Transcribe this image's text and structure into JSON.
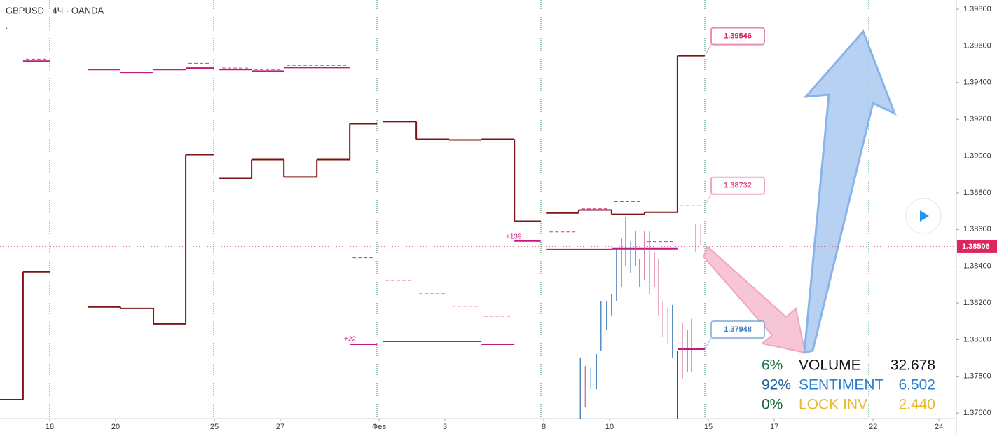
{
  "chart_data": {
    "type": "step",
    "title": "GBPUSD · 4Ч · OANDA",
    "xlim": [
      -1.51,
      27.53
    ],
    "xticks": [
      {
        "value": 0,
        "label": "18"
      },
      {
        "value": 2,
        "label": "20"
      },
      {
        "value": 5,
        "label": "25"
      },
      {
        "value": 7,
        "label": "27"
      },
      {
        "value": 10,
        "label": "Фев"
      },
      {
        "value": 12,
        "label": "3"
      },
      {
        "value": 15,
        "label": "8"
      },
      {
        "value": 17,
        "label": "10"
      },
      {
        "value": 20,
        "label": "15"
      },
      {
        "value": 22,
        "label": "17"
      },
      {
        "value": 25,
        "label": "22"
      },
      {
        "value": 27,
        "label": "24"
      }
    ],
    "ylim": [
      1.3757,
      1.3985
    ],
    "yticks": [
      {
        "value": 1.376,
        "label": "1.37600"
      },
      {
        "value": 1.378,
        "label": "1.37800"
      },
      {
        "value": 1.38,
        "label": "1.38000"
      },
      {
        "value": 1.382,
        "label": "1.38200"
      },
      {
        "value": 1.384,
        "label": "1.38400"
      },
      {
        "value": 1.386,
        "label": "1.38600"
      },
      {
        "value": 1.388,
        "label": "1.38800"
      },
      {
        "value": 1.39,
        "label": "1.39000"
      },
      {
        "value": 1.392,
        "label": "1.39200"
      },
      {
        "value": 1.394,
        "label": "1.39400"
      },
      {
        "value": 1.396,
        "label": "1.39600"
      },
      {
        "value": 1.398,
        "label": "1.39800"
      }
    ],
    "series": [
      {
        "color": "#7b1414",
        "style": "solid",
        "connect": true,
        "x0": [
          -1.51,
          -0.81,
          1.15,
          2.13,
          3.15,
          4.13,
          5.15,
          6.13,
          7.11,
          8.11,
          9.11,
          10.11,
          11.13,
          12.13,
          13.11,
          14.11,
          15.09,
          16.06,
          17.06,
          18.06,
          19.06
        ],
        "x1": [
          -0.81,
          0,
          2.13,
          3.15,
          4.13,
          4.98,
          6.13,
          7.11,
          8.11,
          9.11,
          9.94,
          11.13,
          12.13,
          13.11,
          14.11,
          14.91,
          16.06,
          17.06,
          18.06,
          19.06,
          19.89
        ],
        "values": [
          1.37673,
          1.38369,
          1.38178,
          1.3817,
          1.38086,
          1.39008,
          1.38878,
          1.38981,
          1.38886,
          1.38981,
          1.39176,
          1.39188,
          1.39092,
          1.39088,
          1.39092,
          1.38645,
          1.3869,
          1.38706,
          1.38683,
          1.38694,
          1.39546
        ]
      },
      {
        "color": "#c2187f",
        "style": "solid",
        "connect": false,
        "x0": [
          -0.81,
          1.15,
          2.13,
          3.15,
          4.13,
          5.15,
          6.13,
          7.11,
          9.11,
          10.11,
          13.11,
          14.11,
          15.09,
          17.06,
          19.06
        ],
        "x1": [
          0,
          2.13,
          3.15,
          4.13,
          4.98,
          6.13,
          7.11,
          9.11,
          9.94,
          13.11,
          14.11,
          14.91,
          17.06,
          19.06,
          19.89
        ],
        "values": [
          1.39517,
          1.39471,
          1.39456,
          1.39471,
          1.39479,
          1.39471,
          1.39463,
          1.39482,
          1.37975,
          1.3799,
          1.37975,
          1.38537,
          1.38491,
          1.38495,
          1.37948
        ]
      },
      {
        "color": "#d6368f",
        "style": "dashed",
        "connect": false,
        "x0": [
          -0.81,
          4.13,
          5.15,
          6.13,
          7.11,
          9.11,
          10.11,
          11.13,
          12.13,
          13.11,
          15.09,
          16.06,
          17.06,
          18.06,
          19.06
        ],
        "x1": [
          0,
          4.98,
          6.13,
          7.11,
          9.11,
          9.94,
          11.13,
          12.13,
          13.11,
          14.11,
          16.06,
          17.06,
          18.06,
          19.06,
          19.89
        ],
        "values": [
          1.39528,
          1.39505,
          1.39479,
          1.39471,
          1.39494,
          1.38446,
          1.38323,
          1.3825,
          1.38182,
          1.38128,
          1.38587,
          1.38713,
          1.38752,
          1.38534,
          1.38732
        ]
      }
    ],
    "candles": [
      {
        "color": "#2a6cb0",
        "x": [
          16.11,
          16.43,
          16.6,
          16.74,
          16.91,
          17.06,
          17.21,
          17.36,
          17.49,
          17.64,
          18.91,
          19.36,
          19.49,
          19.62
        ],
        "high": [
          1.37902,
          1.37845,
          1.37921,
          1.38208,
          1.38208,
          1.38247,
          1.38495,
          1.38553,
          1.38668,
          1.38534,
          1.38189,
          1.38055,
          1.38113,
          1.38629
        ],
        "low": [
          1.3757,
          1.3773,
          1.3773,
          1.37941,
          1.38055,
          1.38132,
          1.38208,
          1.38285,
          1.384,
          1.38361,
          1.37902,
          1.37826,
          1.37826,
          1.38476
        ]
      },
      {
        "color": "#d35a8e",
        "x": [
          16.26,
          17.79,
          17.91,
          18.06,
          18.21,
          18.36,
          18.49,
          18.62,
          18.77,
          19.21,
          19.77
        ],
        "high": [
          1.37856,
          1.38591,
          1.38438,
          1.38591,
          1.38591,
          1.38476,
          1.38438,
          1.38208,
          1.3817,
          1.38094,
          1.38629
        ],
        "low": [
          1.37634,
          1.384,
          1.38285,
          1.38323,
          1.38247,
          1.38285,
          1.38132,
          1.38017,
          1.37979,
          1.37788,
          1.38514
        ]
      }
    ],
    "price_labels": {
      "values": [
        1.39546,
        1.38732,
        1.37948
      ],
      "colors": [
        "#d81b60",
        "#e0508f",
        "#3a7cc4"
      ]
    },
    "current_price": 1.38506,
    "annotations": [
      "+139",
      "+22"
    ]
  },
  "stats": {
    "rows": [
      [
        "6%",
        "VOLUME",
        "32.678"
      ],
      [
        "92%",
        "SENTIMENT",
        "6.502"
      ],
      [
        "0%",
        "LOCK INV",
        "2.440"
      ]
    ],
    "colors": [
      [
        "#1b7a4a",
        "#111111",
        "#111111"
      ],
      [
        "#1d5fa0",
        "#2a7fd0",
        "#2a7fd0"
      ],
      [
        "#1b5e3a",
        "#e8b830",
        "#e8b830"
      ]
    ]
  }
}
